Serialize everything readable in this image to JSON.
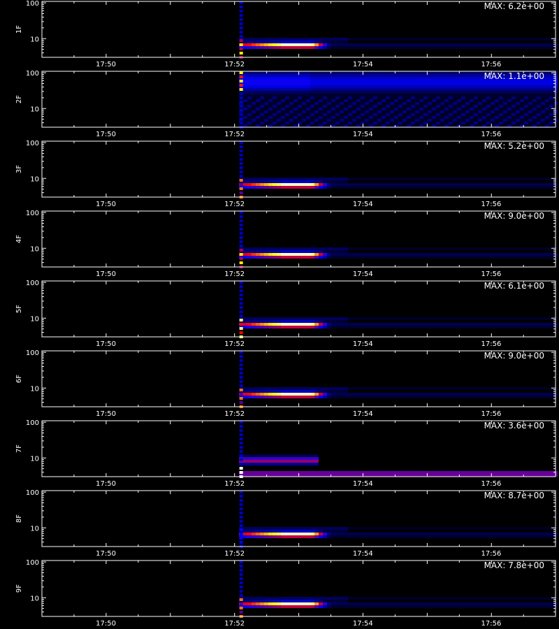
{
  "chart_data": {
    "type": "heatmap",
    "xlabel": "",
    "panels": [
      {
        "ylabel": "1F",
        "max_label": "MAX: 6.2e+00",
        "profile": "flare",
        "side": "top-red"
      },
      {
        "ylabel": "2F",
        "max_label": "MAX: 1.1e+00",
        "profile": "broad"
      },
      {
        "ylabel": "3F",
        "max_label": "MAX: 5.2e+00",
        "profile": "flare",
        "side": "bottom-red"
      },
      {
        "ylabel": "4F",
        "max_label": "MAX: 9.0e+00",
        "profile": "flare",
        "side": "mid"
      },
      {
        "ylabel": "5F",
        "max_label": "MAX: 6.1e+00",
        "profile": "flare",
        "side": "mid"
      },
      {
        "ylabel": "6F",
        "max_label": "MAX: 9.0e+00",
        "profile": "flare",
        "side": "mid"
      },
      {
        "ylabel": "7F",
        "max_label": "MAX: 3.6e+00",
        "profile": "low-band"
      },
      {
        "ylabel": "8F",
        "max_label": "MAX: 8.7e+00",
        "profile": "flare",
        "side": "none"
      },
      {
        "ylabel": "9F",
        "max_label": "MAX: 7.8e+00",
        "profile": "flare",
        "side": "bottom-red"
      }
    ],
    "y_axis": {
      "scale": "log",
      "range": [
        3,
        110
      ],
      "tick_labels": [
        "10",
        "100"
      ]
    },
    "x_axis": {
      "range_minutes": [
        17.8167,
        17.95
      ],
      "tick_labels": [
        "17:50",
        "17:52",
        "17:54",
        "17:56"
      ],
      "tick_values": [
        17.8333,
        17.8667,
        17.9,
        17.9333
      ]
    },
    "event": {
      "onset": "17:52:06",
      "peak_start": "17:52:45",
      "peak_end": "17:53:12",
      "peak_energy": 6.5
    },
    "colormap": [
      "#000000",
      "#0000ff",
      "#ff0000",
      "#ffff00",
      "#ffffff"
    ]
  }
}
